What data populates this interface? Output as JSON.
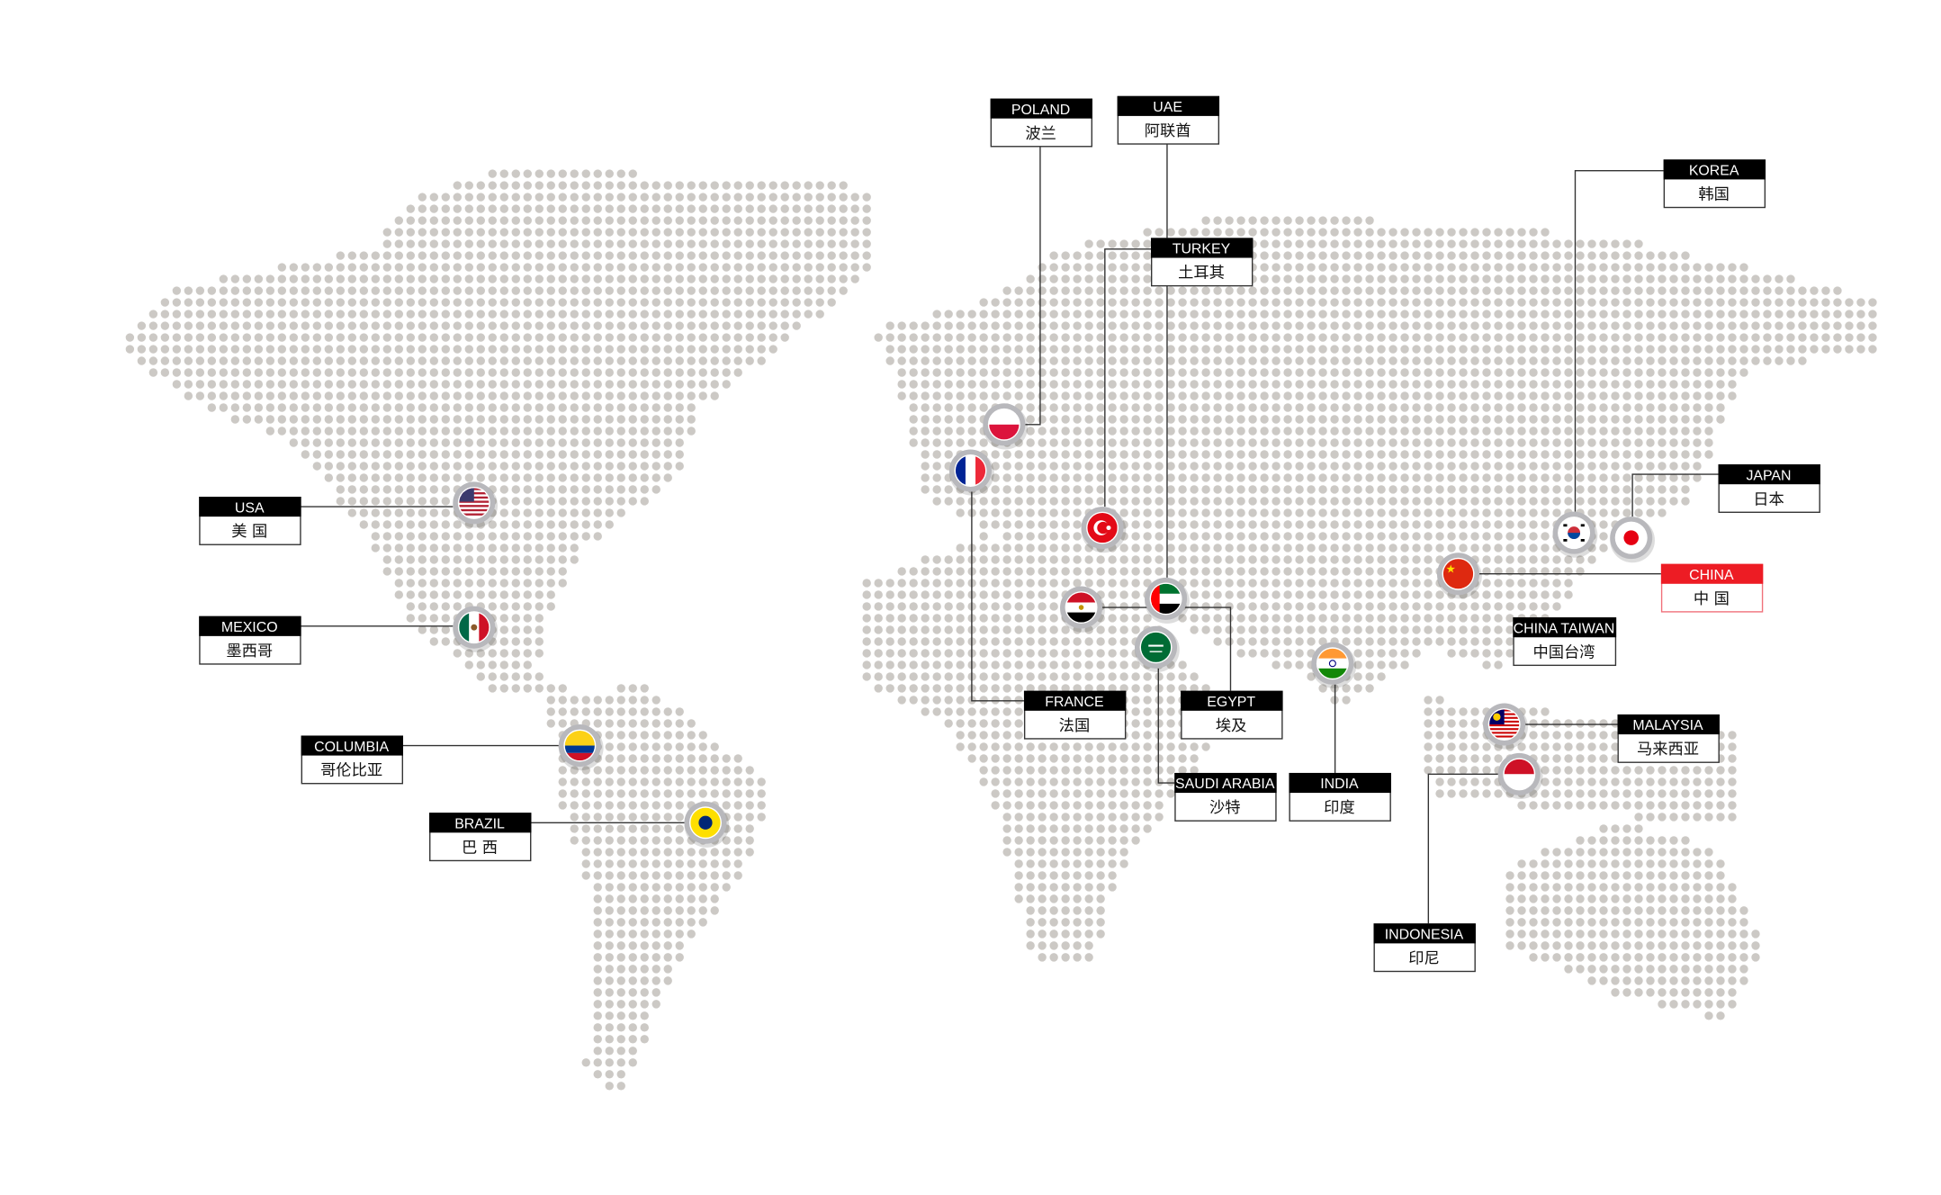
{
  "colors": {
    "dot": "#ccc9c5",
    "label_header": "#000000",
    "highlight": "#ed1c24",
    "ring": "#b8b8bc"
  },
  "locations": [
    {
      "id": "poland",
      "en": "POLAND",
      "zh": "波兰",
      "flag": "poland-flag-icon"
    },
    {
      "id": "uae",
      "en": "UAE",
      "zh": "阿联酋",
      "flag": "uae-flag-icon"
    },
    {
      "id": "turkey",
      "en": "TURKEY",
      "zh": "土耳其",
      "flag": "turkey-flag-icon"
    },
    {
      "id": "korea",
      "en": "KOREA",
      "zh": "韩国",
      "flag": "korea-flag-icon"
    },
    {
      "id": "japan",
      "en": "JAPAN",
      "zh": "日本",
      "flag": "japan-flag-icon"
    },
    {
      "id": "china",
      "en": "CHINA",
      "zh": "中 国",
      "flag": "china-flag-icon",
      "highlight": true
    },
    {
      "id": "china-taiwan",
      "en": "CHINA TAIWAN",
      "zh": "中国台湾"
    },
    {
      "id": "malaysia",
      "en": "MALAYSIA",
      "zh": "马来西亚",
      "flag": "malaysia-flag-icon"
    },
    {
      "id": "indonesia",
      "en": "INDONESIA",
      "zh": "印尼",
      "flag": "indonesia-flag-icon"
    },
    {
      "id": "india",
      "en": "INDIA",
      "zh": "印度",
      "flag": "india-flag-icon"
    },
    {
      "id": "saudi-arabia",
      "en": "SAUDI ARABIA",
      "zh": "沙特",
      "flag": "saudi-arabia-flag-icon"
    },
    {
      "id": "egypt",
      "en": "EGYPT",
      "zh": "埃及",
      "flag": "egypt-flag-icon"
    },
    {
      "id": "france",
      "en": "FRANCE",
      "zh": "法国",
      "flag": "france-flag-icon"
    },
    {
      "id": "usa",
      "en": "USA",
      "zh": "美 国",
      "flag": "usa-flag-icon"
    },
    {
      "id": "mexico",
      "en": "MEXICO",
      "zh": "墨西哥",
      "flag": "mexico-flag-icon"
    },
    {
      "id": "columbia",
      "en": "COLUMBIA",
      "zh": "哥伦比亚",
      "flag": "colombia-flag-icon"
    },
    {
      "id": "brazil",
      "en": "BRAZIL",
      "zh": "巴 西",
      "flag": "brazil-flag-icon"
    }
  ]
}
